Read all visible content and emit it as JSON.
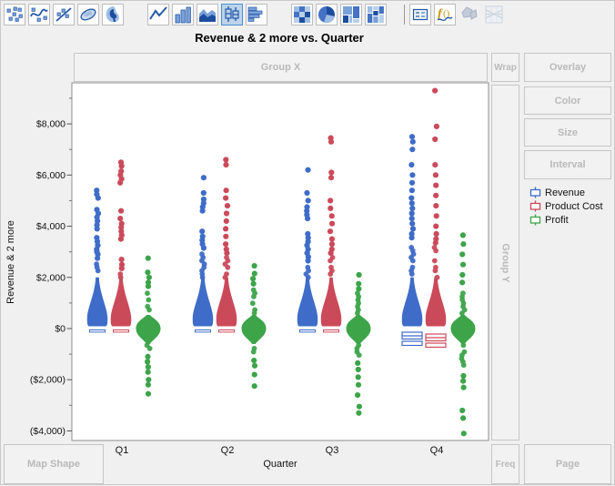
{
  "title": "Revenue & 2 more vs. Quarter",
  "toolbar": {
    "icons": [
      {
        "name": "points"
      },
      {
        "name": "smoother"
      },
      {
        "name": "line-of-fit"
      },
      {
        "name": "ellipse"
      },
      {
        "name": "contour"
      },
      {
        "name": "line",
        "gap_before": true
      },
      {
        "name": "bar"
      },
      {
        "name": "area"
      },
      {
        "name": "box-plot",
        "selected": true
      },
      {
        "name": "histogram"
      },
      {
        "name": "heatmap",
        "gap_before": true
      },
      {
        "name": "pie"
      },
      {
        "name": "treemap"
      },
      {
        "name": "mosaic"
      },
      {
        "name": "caption-box",
        "separator_before": true
      },
      {
        "name": "formula"
      },
      {
        "name": "map-shape",
        "disabled": true
      },
      {
        "name": "parallel-plot",
        "disabled": true
      }
    ],
    "selected_accent": "#4a8fd3"
  },
  "zones": {
    "group_x": "Group X",
    "wrap": "Wrap",
    "overlay": "Overlay",
    "color": "Color",
    "size": "Size",
    "interval": "Interval",
    "group_y": "Group Y",
    "map_shape": "Map Shape",
    "freq": "Freq",
    "page": "Page"
  },
  "legend": {
    "items": [
      {
        "label": "Revenue",
        "color": "#3e6cc8"
      },
      {
        "label": "Product Cost",
        "color": "#cb4a5a"
      },
      {
        "label": "Profit",
        "color": "#3da44a"
      }
    ]
  },
  "axes": {
    "y_label": "Revenue & 2 more",
    "x_label": "Quarter",
    "y_tick_labels": [
      "$8,000",
      "$6,000",
      "$4,000",
      "$2,000",
      "$0",
      "($2,000)",
      "($4,000)"
    ],
    "y_tick_values": [
      8000,
      6000,
      4000,
      2000,
      0,
      -2000,
      -4000
    ],
    "y_minor_tick_values": [
      9000,
      7000,
      5000,
      3000,
      1000,
      -1000,
      -3000
    ],
    "x_categories": [
      "Q1",
      "Q2",
      "Q3",
      "Q4"
    ]
  },
  "chart_data": {
    "type": "scatter",
    "subtype": "jittered-points-by-category",
    "title": "Revenue & 2 more vs. Quarter",
    "xlabel": "Quarter",
    "ylabel": "Revenue & 2 more",
    "categories": [
      "Q1",
      "Q2",
      "Q3",
      "Q4"
    ],
    "ylim": [
      -4400,
      9600
    ],
    "grid": false,
    "legend_position": "right",
    "series": [
      {
        "name": "Revenue",
        "color": "#3e6cc8",
        "quarters": [
          {
            "dense_low": 100,
            "dense_top": 2600,
            "outliers_above": [
              2750,
              2900,
              3000,
              3100,
              3250,
              3400,
              3550,
              3900,
              4050,
              4200,
              4350,
              4500,
              4650,
              5100,
              5250,
              5400
            ],
            "max": 5400
          },
          {
            "dense_low": 100,
            "dense_top": 3000,
            "outliers_above": [
              3150,
              3300,
              3450,
              3600,
              3800,
              4600,
              4750,
              4900,
              5050,
              5300,
              5900
            ],
            "max": 5900
          },
          {
            "dense_low": 100,
            "dense_top": 2500,
            "outliers_above": [
              2650,
              2800,
              2950,
              3100,
              3250,
              3400,
              3550,
              3700,
              4300,
              4450,
              4600,
              4750,
              5000,
              5300,
              6200
            ],
            "max": 6200
          },
          {
            "dense_low": 100,
            "dense_top": 3400,
            "outliers_above": [
              3550,
              3700,
              3900,
              4100,
              4300,
              4500,
              4700,
              4900,
              5100,
              5400,
              5700,
              6000,
              6400,
              7000,
              7300,
              7500
            ],
            "max": 7500,
            "selection_boxes": true
          }
        ]
      },
      {
        "name": "Product Cost",
        "color": "#cb4a5a",
        "quarters": [
          {
            "dense_low": 100,
            "dense_top": 2200,
            "outliers_above": [
              2350,
              2500,
              2700,
              3500,
              3650,
              3800,
              3950,
              4100,
              4300,
              4600,
              5700,
              5850,
              6000,
              6150,
              6350,
              6500
            ],
            "max": 6500
          },
          {
            "dense_low": 100,
            "dense_top": 2800,
            "outliers_above": [
              2950,
              3100,
              3300,
              3600,
              3900,
              4200,
              4500,
              4800,
              5100,
              5400,
              6400,
              6600
            ],
            "max": 6600
          },
          {
            "dense_low": 100,
            "dense_top": 2800,
            "outliers_above": [
              2950,
              3100,
              3300,
              3500,
              3800,
              4100,
              4400,
              4700,
              5000,
              5900,
              6100,
              7300,
              7450
            ],
            "max": 7450
          },
          {
            "dense_low": 100,
            "dense_top": 3200,
            "outliers_above": [
              3350,
              3500,
              3700,
              4000,
              4400,
              4800,
              5200,
              5600,
              6000,
              6400,
              7400,
              7900,
              9300
            ],
            "max": 9300,
            "selection_boxes": true
          }
        ]
      },
      {
        "name": "Profit",
        "color": "#3da44a",
        "centered_at_zero": true,
        "quarters": [
          {
            "dense_top": 1500,
            "outliers_above": [
              1650,
              1800,
              2000,
              2200,
              2750
            ],
            "dense_bottom": -900,
            "outliers_below": [
              -1100,
              -1300,
              -1500,
              -1700,
              -2000,
              -2200,
              -2550
            ],
            "max": 2750,
            "min": -2550
          },
          {
            "dense_top": 1600,
            "outliers_above": [
              1750,
              1950,
              2150,
              2450
            ],
            "dense_bottom": -1000,
            "outliers_below": [
              -1250,
              -1450,
              -1800,
              -2250
            ],
            "max": 2450,
            "min": -2250
          },
          {
            "dense_top": 1400,
            "outliers_above": [
              1550,
              1750,
              2100
            ],
            "dense_bottom": -1100,
            "outliers_below": [
              -1350,
              -1600,
              -1900,
              -2200,
              -2600,
              -3050,
              -3300
            ],
            "max": 2100,
            "min": -3300
          },
          {
            "dense_top": 1500,
            "outliers_above": [
              1800,
              2100,
              2500,
              2900,
              3300,
              3650
            ],
            "dense_bottom": -1500,
            "outliers_below": [
              -1850,
              -2050,
              -2300,
              -3200,
              -3500,
              -4100
            ],
            "max": 3650,
            "min": -4100
          }
        ]
      }
    ]
  }
}
